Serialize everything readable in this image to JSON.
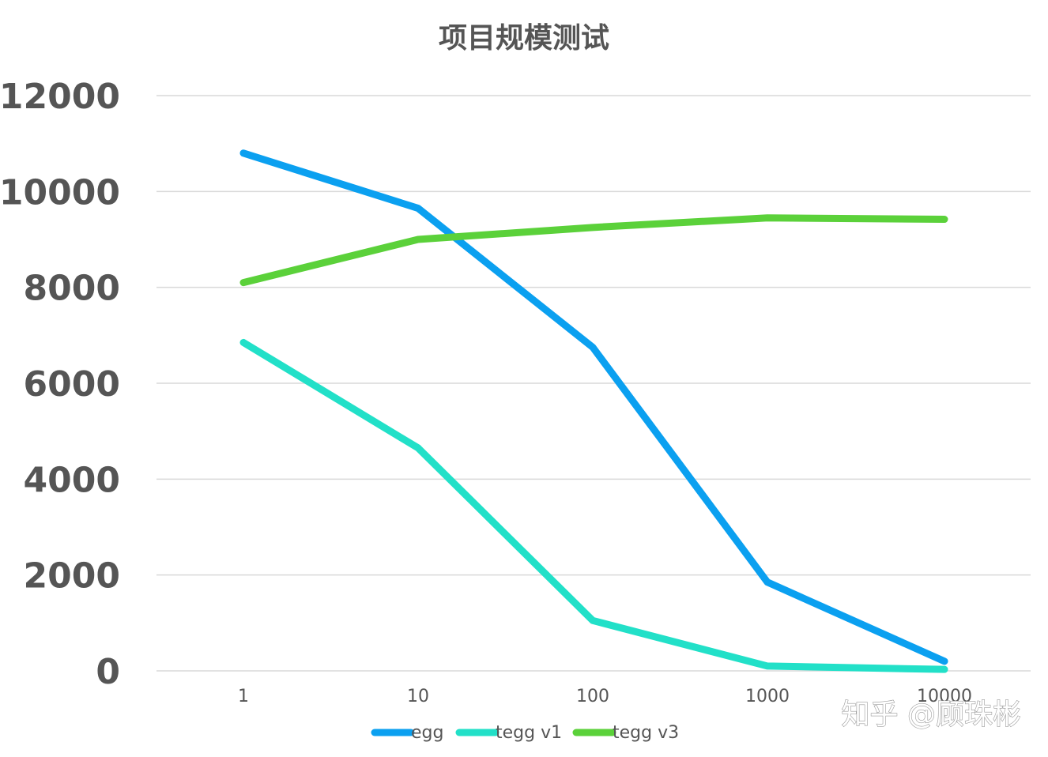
{
  "chart_data": {
    "type": "line",
    "title": "项目规模测试",
    "xlabel": "",
    "ylabel": "",
    "x": [
      "1",
      "10",
      "100",
      "1000",
      "10000"
    ],
    "ylim": [
      0,
      12000
    ],
    "yticks": [
      "0",
      "2000",
      "4000",
      "6000",
      "8000",
      "10000",
      "12000"
    ],
    "grid": true,
    "legend": "bottom",
    "series": [
      {
        "name": "egg",
        "color": "#0ba0f0",
        "values": [
          10800,
          9650,
          6750,
          1850,
          200
        ]
      },
      {
        "name": "tegg v1",
        "color": "#22e0c8",
        "values": [
          6850,
          4650,
          1050,
          100,
          30
        ]
      },
      {
        "name": "tegg v3",
        "color": "#5bd13a",
        "values": [
          8100,
          9000,
          9250,
          9450,
          9420
        ]
      }
    ]
  },
  "watermark": "知乎 @顾珠彬"
}
